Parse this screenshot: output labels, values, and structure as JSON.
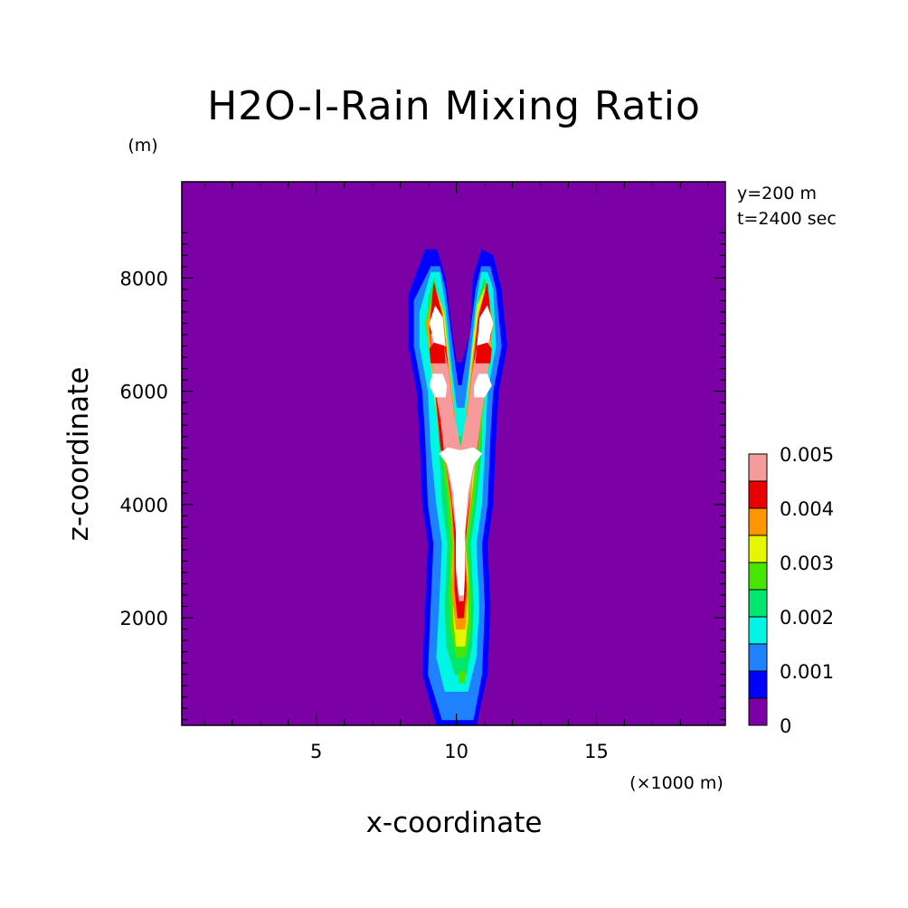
{
  "chart_data": {
    "type": "heatmap",
    "title": "H2O-l-Rain Mixing Ratio",
    "xlabel": "x-coordinate",
    "ylabel": "z-coordinate",
    "x_unit": "(×1000 m)",
    "y_unit": "(m)",
    "annotations": [
      "y=200 m",
      "t=2400 sec"
    ],
    "xlim": [
      0.2,
      19.6
    ],
    "ylim": [
      100,
      9700
    ],
    "x_ticks": [
      5,
      10,
      15
    ],
    "y_ticks": [
      2000,
      4000,
      6000,
      8000
    ],
    "colorbar": {
      "levels": [
        0,
        0.0005,
        0.001,
        0.0015,
        0.002,
        0.0025,
        0.003,
        0.0035,
        0.004,
        0.0045,
        0.005
      ],
      "labels": [
        "0",
        "0.001",
        "0.002",
        "0.003",
        "0.004",
        "0.005"
      ],
      "colors": [
        "#7b00a6",
        "#0000ff",
        "#1e82ff",
        "#00f5e6",
        "#00e66e",
        "#46e600",
        "#e6f500",
        "#ff9600",
        "#eb0000",
        "#f59b9b",
        "#ffffff"
      ]
    },
    "background_level": 0,
    "contours": [
      {
        "level": "0.0005",
        "color": "#0000ff",
        "polygon": [
          [
            10,
            0.1
          ],
          [
            10.7,
            0.1
          ],
          [
            11.1,
            1
          ],
          [
            11.2,
            2.2
          ],
          [
            11.1,
            3.3
          ],
          [
            11.3,
            4
          ],
          [
            11.4,
            5.2
          ],
          [
            11.5,
            6
          ],
          [
            11.8,
            6.8
          ],
          [
            11.6,
            7.8
          ],
          [
            11.3,
            8.4
          ],
          [
            10.9,
            8.5
          ],
          [
            10.6,
            8
          ],
          [
            10.5,
            7
          ],
          [
            10.2,
            6.5
          ],
          [
            10,
            6.5
          ],
          [
            9.8,
            7.2
          ],
          [
            9.6,
            8
          ],
          [
            9.3,
            8.5
          ],
          [
            8.9,
            8.5
          ],
          [
            8.3,
            7.7
          ],
          [
            8.3,
            6.8
          ],
          [
            8.6,
            6
          ],
          [
            8.7,
            5.2
          ],
          [
            8.8,
            4
          ],
          [
            9,
            3.3
          ],
          [
            8.9,
            2.2
          ],
          [
            8.8,
            1
          ],
          [
            9.3,
            0.1
          ]
        ]
      },
      {
        "level": "0.001",
        "color": "#1e82ff",
        "polygon": [
          [
            10.1,
            0.2
          ],
          [
            10.6,
            0.2
          ],
          [
            10.9,
            1
          ],
          [
            11,
            2.2
          ],
          [
            10.9,
            3.3
          ],
          [
            11.1,
            4
          ],
          [
            11.2,
            5.2
          ],
          [
            11.3,
            6
          ],
          [
            11.6,
            6.8
          ],
          [
            11.4,
            7.8
          ],
          [
            11.2,
            8.2
          ],
          [
            10.9,
            8.2
          ],
          [
            10.7,
            7.8
          ],
          [
            10.5,
            7
          ],
          [
            10.2,
            6.1
          ],
          [
            10.05,
            6.1
          ],
          [
            9.8,
            7
          ],
          [
            9.6,
            7.8
          ],
          [
            9.4,
            8.2
          ],
          [
            9.1,
            8.2
          ],
          [
            8.5,
            7.6
          ],
          [
            8.5,
            6.8
          ],
          [
            8.8,
            6
          ],
          [
            8.9,
            5.2
          ],
          [
            9,
            4
          ],
          [
            9.2,
            3.3
          ],
          [
            9.1,
            2.2
          ],
          [
            9,
            1
          ],
          [
            9.5,
            0.2
          ]
        ]
      },
      {
        "level": "0.0015",
        "color": "#00f5e6",
        "polygon": [
          [
            9.9,
            0.7
          ],
          [
            10.4,
            0.7
          ],
          [
            10.7,
            1.3
          ],
          [
            10.8,
            2.2
          ],
          [
            10.7,
            3.3
          ],
          [
            10.9,
            4
          ],
          [
            11,
            5
          ],
          [
            11.1,
            6
          ],
          [
            11.4,
            6.8
          ],
          [
            11.3,
            7.8
          ],
          [
            11.1,
            8.1
          ],
          [
            10.9,
            8.1
          ],
          [
            10.7,
            7.5
          ],
          [
            10.5,
            6.5
          ],
          [
            10.3,
            5.7
          ],
          [
            10,
            5.7
          ],
          [
            9.8,
            6.5
          ],
          [
            9.6,
            7.5
          ],
          [
            9.4,
            8.1
          ],
          [
            9.1,
            8.1
          ],
          [
            8.7,
            7.4
          ],
          [
            8.7,
            6.8
          ],
          [
            9,
            6
          ],
          [
            9.1,
            5
          ],
          [
            9.3,
            4
          ],
          [
            9.5,
            3.3
          ],
          [
            9.4,
            2.2
          ],
          [
            9.3,
            1.3
          ],
          [
            9.6,
            0.7
          ]
        ]
      },
      {
        "level": "0.002",
        "color": "#00e66e",
        "polygon": [
          [
            9.95,
            1
          ],
          [
            10.35,
            1
          ],
          [
            10.55,
            1.5
          ],
          [
            10.6,
            2.2
          ],
          [
            10.5,
            3.3
          ],
          [
            10.7,
            4
          ],
          [
            10.9,
            5
          ],
          [
            10.9,
            6
          ],
          [
            11.2,
            6.8
          ],
          [
            11.2,
            7.6
          ],
          [
            11,
            8
          ],
          [
            10.8,
            7.6
          ],
          [
            10.6,
            6.8
          ],
          [
            10.4,
            5.5
          ],
          [
            10.2,
            5.2
          ],
          [
            10.05,
            5.2
          ],
          [
            9.8,
            5.8
          ],
          [
            9.6,
            6.8
          ],
          [
            9.4,
            7.6
          ],
          [
            9.2,
            8
          ],
          [
            9,
            7.6
          ],
          [
            9,
            6.8
          ],
          [
            9.3,
            6
          ],
          [
            9.4,
            5
          ],
          [
            9.5,
            4
          ],
          [
            9.7,
            3.3
          ],
          [
            9.6,
            2.2
          ],
          [
            9.65,
            1.5
          ]
        ]
      },
      {
        "level": "0.0025",
        "color": "#46e600",
        "polygon": [
          [
            10,
            1.3
          ],
          [
            10.3,
            1.3
          ],
          [
            10.5,
            1.8
          ],
          [
            10.5,
            2.5
          ],
          [
            10.4,
            3.3
          ],
          [
            10.6,
            4
          ],
          [
            10.8,
            4.9
          ],
          [
            10.9,
            5.5
          ],
          [
            11.1,
            6.2
          ],
          [
            11.3,
            7.2
          ],
          [
            11,
            7.9
          ],
          [
            10.8,
            7.6
          ],
          [
            10.6,
            6.8
          ],
          [
            10.4,
            5.6
          ],
          [
            10.2,
            5
          ],
          [
            10,
            5
          ],
          [
            9.8,
            5.6
          ],
          [
            9.6,
            6.6
          ],
          [
            9.4,
            7.6
          ],
          [
            9.2,
            7.9
          ],
          [
            8.9,
            7.2
          ],
          [
            9.2,
            6.2
          ],
          [
            9.4,
            5.5
          ],
          [
            9.5,
            4.9
          ],
          [
            9.7,
            4
          ],
          [
            9.8,
            3.3
          ],
          [
            9.75,
            2.5
          ],
          [
            9.8,
            1.8
          ]
        ]
      },
      {
        "level": "0.003",
        "color": "#e6f500",
        "polygon": [
          [
            10,
            1.5
          ],
          [
            10.3,
            1.5
          ],
          [
            10.4,
            2
          ],
          [
            10.4,
            2.8
          ],
          [
            10.3,
            3.3
          ],
          [
            10.5,
            4
          ],
          [
            10.7,
            4.9
          ],
          [
            10.8,
            5.3
          ],
          [
            11,
            6
          ],
          [
            11.3,
            7.2
          ],
          [
            11,
            7.8
          ],
          [
            10.75,
            7.5
          ],
          [
            10.55,
            6.6
          ],
          [
            10.35,
            5.5
          ],
          [
            10.15,
            4.95
          ],
          [
            9.95,
            5.5
          ],
          [
            9.75,
            6.4
          ],
          [
            9.55,
            7.4
          ],
          [
            9.25,
            7.8
          ],
          [
            8.95,
            7.2
          ],
          [
            9.2,
            6
          ],
          [
            9.4,
            5.3
          ],
          [
            9.6,
            4.9
          ],
          [
            9.8,
            4
          ],
          [
            9.9,
            3.3
          ],
          [
            9.85,
            2.8
          ],
          [
            9.9,
            2
          ]
        ]
      },
      {
        "level": "0.0035",
        "color": "#ff9600",
        "polygon": [
          [
            10,
            1.8
          ],
          [
            10.3,
            1.8
          ],
          [
            10.4,
            2.4
          ],
          [
            10.3,
            3.3
          ],
          [
            10.5,
            4
          ],
          [
            10.6,
            4.8
          ],
          [
            10.8,
            5.2
          ],
          [
            10.95,
            5.9
          ],
          [
            11.3,
            7.2
          ],
          [
            11.05,
            7.8
          ],
          [
            10.8,
            7.4
          ],
          [
            10.55,
            6.4
          ],
          [
            10.3,
            5.3
          ],
          [
            10.15,
            4.95
          ],
          [
            10,
            5.3
          ],
          [
            9.75,
            6.3
          ],
          [
            9.5,
            7.4
          ],
          [
            9.25,
            7.8
          ],
          [
            8.95,
            7.2
          ],
          [
            9.25,
            5.9
          ],
          [
            9.4,
            5.2
          ],
          [
            9.6,
            4.8
          ],
          [
            9.8,
            4
          ],
          [
            9.9,
            3.3
          ],
          [
            9.85,
            2.4
          ]
        ]
      },
      {
        "level": "0.004",
        "color": "#eb0000",
        "polygon": [
          [
            10.05,
            2
          ],
          [
            10.25,
            2
          ],
          [
            10.35,
            2.5
          ],
          [
            10.3,
            3.3
          ],
          [
            10.45,
            4
          ],
          [
            10.55,
            4.7
          ],
          [
            10.75,
            5
          ],
          [
            10.9,
            5.8
          ],
          [
            11.25,
            7.1
          ],
          [
            11.1,
            7.9
          ],
          [
            10.8,
            7.3
          ],
          [
            10.55,
            6.2
          ],
          [
            10.3,
            5.2
          ],
          [
            10.15,
            4.95
          ],
          [
            10,
            5.2
          ],
          [
            9.75,
            6.2
          ],
          [
            9.5,
            7.3
          ],
          [
            9.2,
            7.9
          ],
          [
            9.05,
            7.1
          ],
          [
            9.3,
            5.8
          ],
          [
            9.45,
            5
          ],
          [
            9.65,
            4.7
          ],
          [
            9.85,
            4
          ],
          [
            9.95,
            3.3
          ],
          [
            9.95,
            2.5
          ]
        ]
      },
      {
        "level": "0.0045",
        "color": "#f59b9b",
        "polygon": [
          [
            10.1,
            2.3
          ],
          [
            10.25,
            2.3
          ],
          [
            10.3,
            2.8
          ],
          [
            10.3,
            3.5
          ],
          [
            10.5,
            4.3
          ],
          [
            10.7,
            4.85
          ],
          [
            10.85,
            5.5
          ],
          [
            11.1,
            6.2
          ],
          [
            11.2,
            7
          ],
          [
            10.9,
            7.2
          ],
          [
            10.6,
            6.4
          ],
          [
            10.4,
            5.6
          ],
          [
            10.15,
            4.95
          ],
          [
            9.9,
            5.6
          ],
          [
            9.7,
            6.4
          ],
          [
            9.4,
            7.2
          ],
          [
            9.1,
            7
          ],
          [
            9.2,
            6.2
          ],
          [
            9.45,
            5.5
          ],
          [
            9.6,
            4.85
          ],
          [
            9.8,
            4.3
          ],
          [
            10,
            3.5
          ],
          [
            10,
            2.8
          ]
        ]
      },
      {
        "level": "0.005",
        "color": "#ffffff",
        "polygon": [
          [
            10.1,
            2.4
          ],
          [
            10.25,
            2.4
          ],
          [
            10.3,
            2.9
          ],
          [
            10.3,
            3.6
          ],
          [
            10.4,
            4.2
          ],
          [
            10.6,
            4.7
          ],
          [
            10.9,
            4.9
          ],
          [
            10.6,
            5
          ],
          [
            10.15,
            4.95
          ],
          [
            9.7,
            5
          ],
          [
            9.4,
            4.9
          ],
          [
            9.7,
            4.7
          ],
          [
            9.9,
            4.2
          ],
          [
            10,
            3.6
          ],
          [
            10,
            2.9
          ]
        ]
      },
      {
        "level": "0.005",
        "color": "#ffffff",
        "polygon": [
          [
            10.65,
            5.9
          ],
          [
            11.0,
            5.9
          ],
          [
            11.25,
            6.1
          ],
          [
            11.1,
            6.3
          ],
          [
            10.8,
            6.3
          ],
          [
            10.65,
            6.1
          ]
        ]
      },
      {
        "level": "0.005",
        "color": "#ffffff",
        "polygon": [
          [
            9.25,
            5.9
          ],
          [
            9.6,
            5.9
          ],
          [
            9.65,
            6.1
          ],
          [
            9.5,
            6.3
          ],
          [
            9.15,
            6.3
          ],
          [
            9.05,
            6.1
          ]
        ]
      },
      {
        "level": "0.005",
        "color": "#ffffff",
        "polygon": [
          [
            10.75,
            6.8
          ],
          [
            11.1,
            6.8
          ],
          [
            11.3,
            7.2
          ],
          [
            11.1,
            7.5
          ],
          [
            10.85,
            7.3
          ]
        ]
      },
      {
        "level": "0.005",
        "color": "#ffffff",
        "polygon": [
          [
            9.25,
            6.8
          ],
          [
            9.6,
            6.8
          ],
          [
            9.5,
            7.3
          ],
          [
            9.25,
            7.5
          ],
          [
            9.05,
            7.2
          ]
        ]
      },
      {
        "level": "0.0045",
        "color": "#eb0000",
        "polygon": [
          [
            10.7,
            6.5
          ],
          [
            11.2,
            6.5
          ],
          [
            11.25,
            6.75
          ],
          [
            11.1,
            6.85
          ],
          [
            10.75,
            6.8
          ]
        ]
      },
      {
        "level": "0.0045",
        "color": "#eb0000",
        "polygon": [
          [
            9.1,
            6.5
          ],
          [
            9.6,
            6.5
          ],
          [
            9.55,
            6.8
          ],
          [
            9.2,
            6.85
          ],
          [
            9.05,
            6.75
          ]
        ]
      },
      {
        "level": "0.0025",
        "color": "#46e600",
        "polygon": [
          [
            10.1,
            0.85
          ],
          [
            10.3,
            0.85
          ],
          [
            10.32,
            1.05
          ],
          [
            10.1,
            1.05
          ]
        ]
      }
    ]
  }
}
